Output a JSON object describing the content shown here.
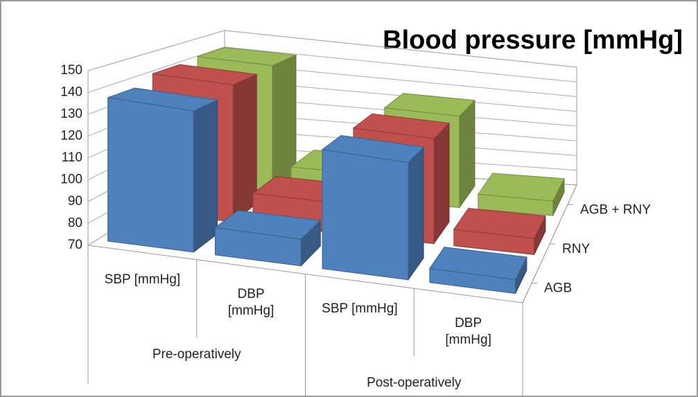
{
  "chart_data": {
    "type": "bar3d",
    "title": "Blood pressure [mmHg]",
    "groups": [
      "Pre-operatively",
      "Post-operatively"
    ],
    "categories": [
      "SBP [mmHg]",
      "DBP [mmHg]",
      "SBP [mmHg]",
      "DBP [mmHg]"
    ],
    "series": [
      {
        "name": "AGB",
        "color": "#4f81bd",
        "values": [
          137,
          83,
          128,
          77
        ]
      },
      {
        "name": "RNY",
        "color": "#c0504d",
        "values": [
          141,
          86,
          127,
          79
        ]
      },
      {
        "name": "AGB + RNY",
        "color": "#9bbb59",
        "values": [
          142,
          85,
          125,
          79
        ]
      }
    ],
    "ylim": [
      70,
      150
    ],
    "yticks": [
      70,
      80,
      90,
      100,
      110,
      120,
      130,
      140,
      150
    ],
    "grid": true
  }
}
